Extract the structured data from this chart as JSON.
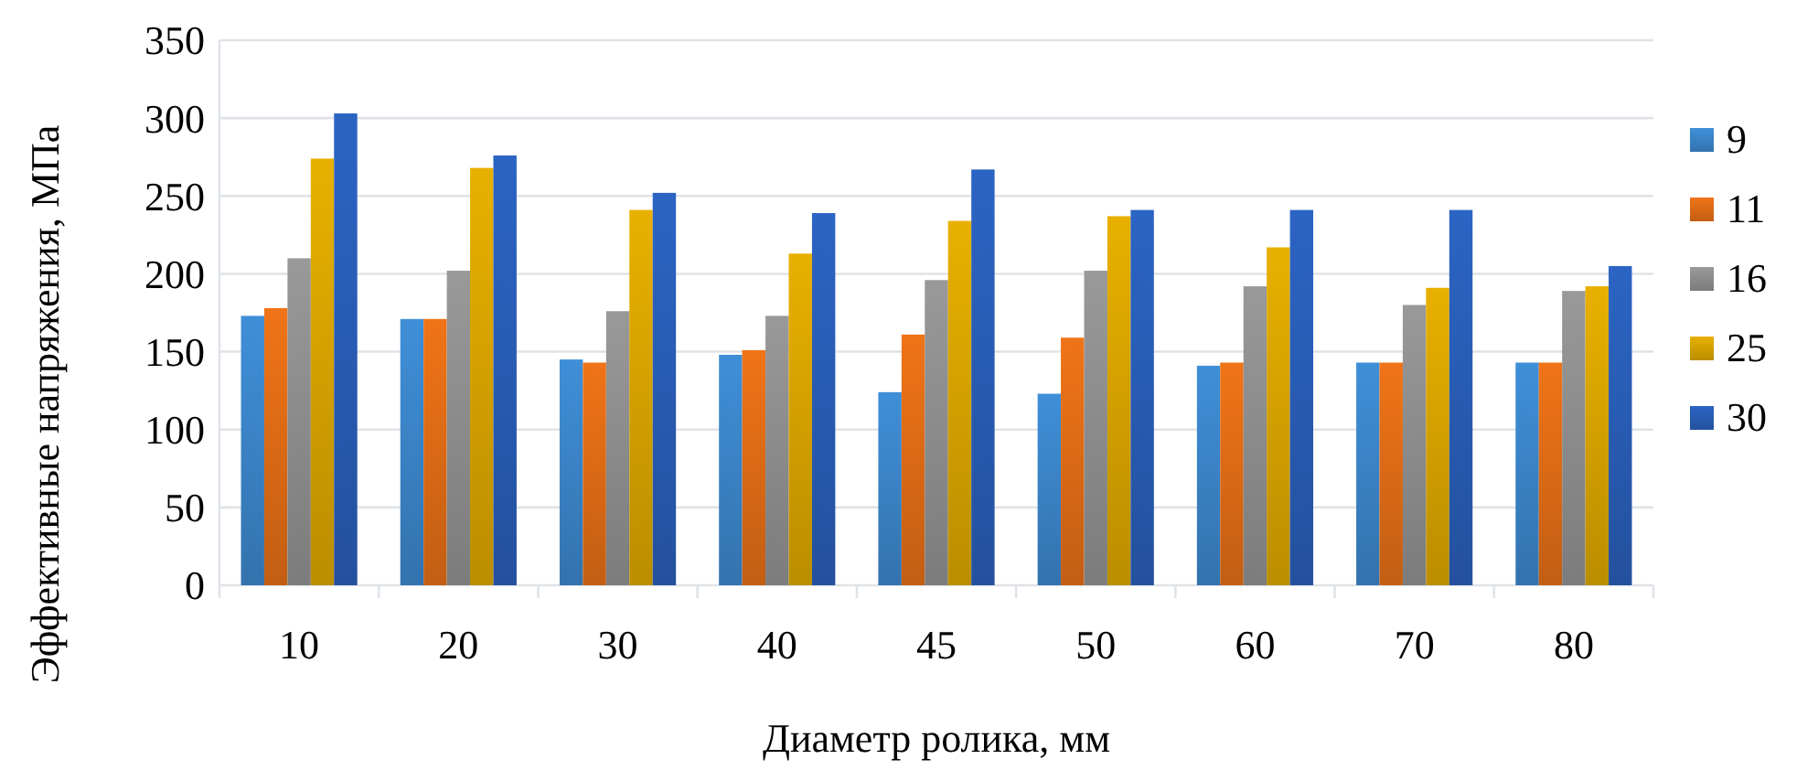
{
  "chart_data": {
    "type": "bar",
    "xlabel": "Диаметр ролика, мм",
    "ylabel": "Эффективные напряжения, МПа",
    "categories": [
      "10",
      "20",
      "30",
      "40",
      "45",
      "50",
      "60",
      "70",
      "80"
    ],
    "series": [
      {
        "name": "9",
        "color": "#3f8fd8",
        "values": [
          173,
          171,
          145,
          148,
          124,
          123,
          141,
          143,
          143
        ]
      },
      {
        "name": "11",
        "color": "#f07418",
        "values": [
          178,
          171,
          143,
          151,
          161,
          159,
          143,
          143,
          143
        ]
      },
      {
        "name": "16",
        "color": "#999999",
        "values": [
          210,
          202,
          176,
          173,
          196,
          202,
          192,
          180,
          189
        ]
      },
      {
        "name": "25",
        "color": "#e8b000",
        "values": [
          274,
          268,
          241,
          213,
          234,
          237,
          217,
          191,
          192
        ]
      },
      {
        "name": "30",
        "color": "#2c64c4",
        "values": [
          303,
          276,
          252,
          239,
          267,
          241,
          241,
          241,
          205
        ]
      }
    ],
    "ylim": [
      0,
      350
    ],
    "yticks": [
      0,
      50,
      100,
      150,
      200,
      250,
      300,
      350
    ],
    "grid": "y",
    "legend": "right"
  }
}
